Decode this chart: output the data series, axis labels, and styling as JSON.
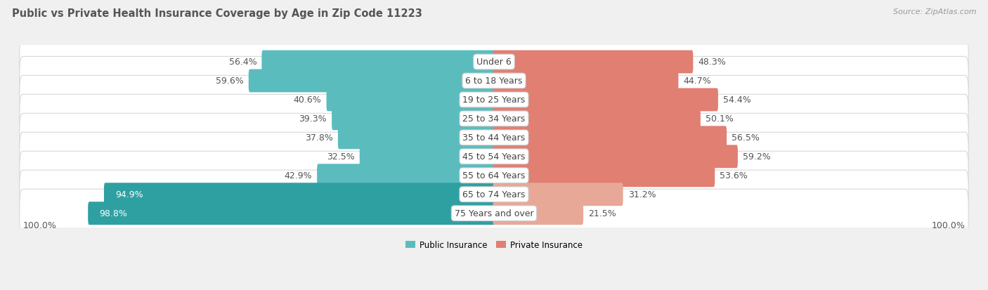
{
  "title": "Public vs Private Health Insurance Coverage by Age in Zip Code 11223",
  "source": "Source: ZipAtlas.com",
  "categories": [
    "Under 6",
    "6 to 18 Years",
    "19 to 25 Years",
    "25 to 34 Years",
    "35 to 44 Years",
    "45 to 54 Years",
    "55 to 64 Years",
    "65 to 74 Years",
    "75 Years and over"
  ],
  "public_values": [
    56.4,
    59.6,
    40.6,
    39.3,
    37.8,
    32.5,
    42.9,
    94.9,
    98.8
  ],
  "private_values": [
    48.3,
    44.7,
    54.4,
    50.1,
    56.5,
    59.2,
    53.6,
    31.2,
    21.5
  ],
  "public_color": "#5bbcbe",
  "private_color": "#e07f72",
  "public_color_large": "#2fa0a2",
  "private_color_large": "#e8a898",
  "row_color_odd": "#f5f5f5",
  "row_color_even": "#ebebeb",
  "bg_color": "#f0f0f0",
  "bar_height": 0.62,
  "scale_max": 100.0,
  "label_fontsize": 9.0,
  "title_fontsize": 10.5,
  "source_fontsize": 8.0,
  "legend_fontsize": 8.5,
  "category_fontsize": 9.0,
  "title_color": "#555555",
  "label_color": "#555555",
  "source_color": "#999999"
}
